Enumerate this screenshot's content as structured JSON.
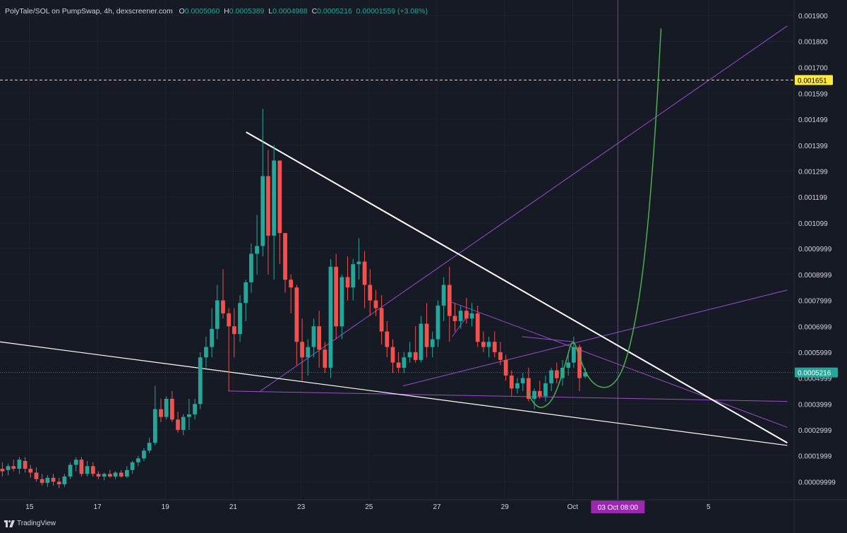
{
  "header": {
    "symbol": "PolyTale/SOL on PumpSwap, 4h, dexscreener.com",
    "o_label": "O",
    "o_value": "0.0005060",
    "h_label": "H",
    "h_value": "0.0005389",
    "l_label": "L",
    "l_value": "0.0004988",
    "c_label": "C",
    "c_value": "0.0005216",
    "change": "0.00001559 (+3.08%)"
  },
  "footer": {
    "brand": "TradingView"
  },
  "colors": {
    "background": "#161a25",
    "up": "#26a69a",
    "down": "#ef5350",
    "trendline": "#ffffff",
    "projection": "#7c3aed",
    "curve": "#4caf50",
    "level": "#ffeb3b",
    "price_tag": "#26a69a",
    "date_tag": "#9c27b0"
  },
  "chart_data": {
    "type": "candlestick",
    "pair": "PolyTale/SOL",
    "interval": "4h",
    "y_ticks": [
      "0.001900",
      "0.001800",
      "0.001700",
      "0.001599",
      "0.001499",
      "0.001399",
      "0.001299",
      "0.001199",
      "0.001099",
      "0.0009999",
      "0.0008999",
      "0.0007999",
      "0.0006999",
      "0.0005999",
      "0.0004999",
      "0.0003999",
      "0.0002999",
      "0.0001999",
      "0.00009999"
    ],
    "y_tick_values": [
      0.0019,
      0.0018,
      0.0017,
      0.001599,
      0.001499,
      0.001399,
      0.001299,
      0.001199,
      0.001099,
      0.0009999,
      0.0008999,
      0.0007999,
      0.0006999,
      0.0005999,
      0.0004999,
      0.0003999,
      0.0002999,
      0.0001999,
      9.999e-05
    ],
    "ylim": [
      3e-05,
      0.00196
    ],
    "x_ticks": [
      "15",
      "17",
      "19",
      "21",
      "23",
      "25",
      "27",
      "29",
      "Oct",
      "5"
    ],
    "x_tick_values": [
      15,
      17,
      19,
      21,
      23,
      25,
      27,
      29,
      31,
      35
    ],
    "xlim": [
      14.13,
      37.52
    ],
    "current_price": 0.0005216,
    "current_price_label": "0.0005216",
    "level_price": 0.001651,
    "level_price_label": "0.001651",
    "marker_x": 32.33,
    "marker_label": "03 Oct   08:00",
    "candles": [
      {
        "x": 14.2,
        "o": 0.00015,
        "h": 0.000175,
        "l": 0.00012,
        "c": 0.00014
      },
      {
        "x": 14.37,
        "o": 0.000145,
        "h": 0.00017,
        "l": 0.000125,
        "c": 0.00016
      },
      {
        "x": 14.53,
        "o": 0.00016,
        "h": 0.000185,
        "l": 0.00014,
        "c": 0.00015
      },
      {
        "x": 14.7,
        "o": 0.00015,
        "h": 0.000195,
        "l": 0.00013,
        "c": 0.000185
      },
      {
        "x": 14.87,
        "o": 0.00018,
        "h": 0.000195,
        "l": 0.000135,
        "c": 0.00015
      },
      {
        "x": 15.03,
        "o": 0.00015,
        "h": 0.000165,
        "l": 0.000115,
        "c": 0.000135
      },
      {
        "x": 15.2,
        "o": 0.000135,
        "h": 0.000155,
        "l": 0.0001,
        "c": 0.00011
      },
      {
        "x": 15.37,
        "o": 0.00011,
        "h": 0.00013,
        "l": 8.5e-05,
        "c": 9.5e-05
      },
      {
        "x": 15.53,
        "o": 9.5e-05,
        "h": 0.000125,
        "l": 8e-05,
        "c": 0.000115
      },
      {
        "x": 15.7,
        "o": 0.000115,
        "h": 0.00013,
        "l": 8.5e-05,
        "c": 0.0001
      },
      {
        "x": 15.87,
        "o": 0.0001,
        "h": 0.000115,
        "l": 7.5e-05,
        "c": 9e-05
      },
      {
        "x": 16.03,
        "o": 9e-05,
        "h": 0.00013,
        "l": 8e-05,
        "c": 0.00012
      },
      {
        "x": 16.2,
        "o": 0.00012,
        "h": 0.000175,
        "l": 0.00011,
        "c": 0.000165
      },
      {
        "x": 16.37,
        "o": 0.000165,
        "h": 0.000195,
        "l": 0.00014,
        "c": 0.000185
      },
      {
        "x": 16.53,
        "o": 0.000185,
        "h": 0.000195,
        "l": 0.00012,
        "c": 0.00013
      },
      {
        "x": 16.7,
        "o": 0.00013,
        "h": 0.00018,
        "l": 0.00012,
        "c": 0.00016
      },
      {
        "x": 16.87,
        "o": 0.00016,
        "h": 0.000175,
        "l": 0.00012,
        "c": 0.00013
      },
      {
        "x": 17.03,
        "o": 0.00013,
        "h": 0.00014,
        "l": 0.00011,
        "c": 0.00012
      },
      {
        "x": 17.2,
        "o": 0.00012,
        "h": 0.000135,
        "l": 0.000105,
        "c": 0.00013
      },
      {
        "x": 17.37,
        "o": 0.00013,
        "h": 0.000145,
        "l": 0.000115,
        "c": 0.00012
      },
      {
        "x": 17.53,
        "o": 0.00012,
        "h": 0.00014,
        "l": 0.00011,
        "c": 0.000135
      },
      {
        "x": 17.7,
        "o": 0.000135,
        "h": 0.000145,
        "l": 0.000115,
        "c": 0.00012
      },
      {
        "x": 17.87,
        "o": 0.00012,
        "h": 0.00016,
        "l": 0.000115,
        "c": 0.000145
      },
      {
        "x": 18.03,
        "o": 0.000145,
        "h": 0.00018,
        "l": 0.00013,
        "c": 0.000175
      },
      {
        "x": 18.2,
        "o": 0.000175,
        "h": 0.0002,
        "l": 0.00016,
        "c": 0.00019
      },
      {
        "x": 18.37,
        "o": 0.00019,
        "h": 0.00023,
        "l": 0.00018,
        "c": 0.00022
      },
      {
        "x": 18.53,
        "o": 0.00022,
        "h": 0.00027,
        "l": 0.00021,
        "c": 0.00025
      },
      {
        "x": 18.7,
        "o": 0.00025,
        "h": 0.00047,
        "l": 0.00024,
        "c": 0.00038
      },
      {
        "x": 18.87,
        "o": 0.00038,
        "h": 0.00042,
        "l": 0.00033,
        "c": 0.00035
      },
      {
        "x": 19.03,
        "o": 0.00035,
        "h": 0.00043,
        "l": 0.00034,
        "c": 0.00042
      },
      {
        "x": 19.2,
        "o": 0.00042,
        "h": 0.00045,
        "l": 0.00033,
        "c": 0.00034
      },
      {
        "x": 19.37,
        "o": 0.00034,
        "h": 0.00037,
        "l": 0.00029,
        "c": 0.0003
      },
      {
        "x": 19.53,
        "o": 0.0003,
        "h": 0.00036,
        "l": 0.00028,
        "c": 0.00035
      },
      {
        "x": 19.7,
        "o": 0.00035,
        "h": 0.00042,
        "l": 0.0003,
        "c": 0.00036
      },
      {
        "x": 19.87,
        "o": 0.00036,
        "h": 0.00042,
        "l": 0.00034,
        "c": 0.0004
      },
      {
        "x": 20.03,
        "o": 0.0004,
        "h": 0.0006,
        "l": 0.00038,
        "c": 0.00058
      },
      {
        "x": 20.2,
        "o": 0.00058,
        "h": 0.00066,
        "l": 0.00054,
        "c": 0.00062
      },
      {
        "x": 20.37,
        "o": 0.00062,
        "h": 0.00077,
        "l": 0.00058,
        "c": 0.00069
      },
      {
        "x": 20.53,
        "o": 0.00069,
        "h": 0.00086,
        "l": 0.00065,
        "c": 0.0008
      },
      {
        "x": 20.7,
        "o": 0.0008,
        "h": 0.00092,
        "l": 0.00073,
        "c": 0.00075
      },
      {
        "x": 20.87,
        "o": 0.00075,
        "h": 0.00077,
        "l": 0.00045,
        "c": 0.0007
      },
      {
        "x": 21.03,
        "o": 0.0007,
        "h": 0.00077,
        "l": 0.00058,
        "c": 0.00067
      },
      {
        "x": 21.2,
        "o": 0.00067,
        "h": 0.00082,
        "l": 0.00064,
        "c": 0.00079
      },
      {
        "x": 21.37,
        "o": 0.00079,
        "h": 0.00088,
        "l": 0.00072,
        "c": 0.00087
      },
      {
        "x": 21.53,
        "o": 0.00087,
        "h": 0.00102,
        "l": 0.00083,
        "c": 0.00098
      },
      {
        "x": 21.7,
        "o": 0.00098,
        "h": 0.00113,
        "l": 0.0009,
        "c": 0.00101
      },
      {
        "x": 21.87,
        "o": 0.00101,
        "h": 0.00154,
        "l": 0.00097,
        "c": 0.00128
      },
      {
        "x": 22.03,
        "o": 0.00128,
        "h": 0.00138,
        "l": 0.0009,
        "c": 0.00105
      },
      {
        "x": 22.2,
        "o": 0.00105,
        "h": 0.0014,
        "l": 0.00088,
        "c": 0.00134
      },
      {
        "x": 22.37,
        "o": 0.00134,
        "h": 0.00134,
        "l": 0.00094,
        "c": 0.00106
      },
      {
        "x": 22.53,
        "o": 0.00106,
        "h": 0.00106,
        "l": 0.00083,
        "c": 0.00088
      },
      {
        "x": 22.7,
        "o": 0.00088,
        "h": 0.0009,
        "l": 0.00075,
        "c": 0.00085
      },
      {
        "x": 22.87,
        "o": 0.00085,
        "h": 0.00086,
        "l": 0.00055,
        "c": 0.00064
      },
      {
        "x": 23.03,
        "o": 0.00064,
        "h": 0.00073,
        "l": 0.00049,
        "c": 0.00058
      },
      {
        "x": 23.2,
        "o": 0.00058,
        "h": 0.00065,
        "l": 0.00051,
        "c": 0.00062
      },
      {
        "x": 23.37,
        "o": 0.00062,
        "h": 0.00073,
        "l": 0.00058,
        "c": 0.0007
      },
      {
        "x": 23.53,
        "o": 0.0007,
        "h": 0.00076,
        "l": 0.00054,
        "c": 0.00061
      },
      {
        "x": 23.7,
        "o": 0.00061,
        "h": 0.00064,
        "l": 0.00052,
        "c": 0.00054
      },
      {
        "x": 23.87,
        "o": 0.00054,
        "h": 0.00096,
        "l": 0.0005,
        "c": 0.00093
      },
      {
        "x": 24.03,
        "o": 0.00093,
        "h": 0.00098,
        "l": 0.00065,
        "c": 0.0007
      },
      {
        "x": 24.2,
        "o": 0.0007,
        "h": 0.0009,
        "l": 0.00065,
        "c": 0.00089
      },
      {
        "x": 24.37,
        "o": 0.00089,
        "h": 0.00097,
        "l": 0.0008,
        "c": 0.00085
      },
      {
        "x": 24.53,
        "o": 0.00085,
        "h": 0.00096,
        "l": 0.0008,
        "c": 0.00094
      },
      {
        "x": 24.7,
        "o": 0.00094,
        "h": 0.00104,
        "l": 0.00088,
        "c": 0.00095
      },
      {
        "x": 24.87,
        "o": 0.00095,
        "h": 0.00099,
        "l": 0.00077,
        "c": 0.00086
      },
      {
        "x": 25.03,
        "o": 0.00086,
        "h": 0.00092,
        "l": 0.00074,
        "c": 0.0008
      },
      {
        "x": 25.2,
        "o": 0.0008,
        "h": 0.00084,
        "l": 0.00074,
        "c": 0.00077
      },
      {
        "x": 25.37,
        "o": 0.00077,
        "h": 0.00082,
        "l": 0.00063,
        "c": 0.00068
      },
      {
        "x": 25.53,
        "o": 0.00068,
        "h": 0.00072,
        "l": 0.00058,
        "c": 0.00062
      },
      {
        "x": 25.7,
        "o": 0.00062,
        "h": 0.00065,
        "l": 0.00052,
        "c": 0.00056
      },
      {
        "x": 25.87,
        "o": 0.00056,
        "h": 0.0006,
        "l": 0.00052,
        "c": 0.00054
      },
      {
        "x": 26.03,
        "o": 0.00054,
        "h": 0.0006,
        "l": 0.00052,
        "c": 0.00058
      },
      {
        "x": 26.2,
        "o": 0.00058,
        "h": 0.00064,
        "l": 0.00056,
        "c": 0.0006
      },
      {
        "x": 26.37,
        "o": 0.0006,
        "h": 0.0007,
        "l": 0.00056,
        "c": 0.00057
      },
      {
        "x": 26.53,
        "o": 0.00057,
        "h": 0.00074,
        "l": 0.00056,
        "c": 0.00071
      },
      {
        "x": 26.7,
        "o": 0.00071,
        "h": 0.00079,
        "l": 0.00058,
        "c": 0.00062
      },
      {
        "x": 26.87,
        "o": 0.00062,
        "h": 0.00068,
        "l": 0.00058,
        "c": 0.00065
      },
      {
        "x": 27.03,
        "o": 0.00065,
        "h": 0.0008,
        "l": 0.00062,
        "c": 0.00078
      },
      {
        "x": 27.2,
        "o": 0.00078,
        "h": 0.00089,
        "l": 0.00072,
        "c": 0.00086
      },
      {
        "x": 27.37,
        "o": 0.00086,
        "h": 0.00093,
        "l": 0.00064,
        "c": 0.00074
      },
      {
        "x": 27.53,
        "o": 0.00074,
        "h": 0.00079,
        "l": 0.00068,
        "c": 0.00072
      },
      {
        "x": 27.7,
        "o": 0.00072,
        "h": 0.00078,
        "l": 0.00069,
        "c": 0.00076
      },
      {
        "x": 27.87,
        "o": 0.00076,
        "h": 0.00081,
        "l": 0.00071,
        "c": 0.00073
      },
      {
        "x": 28.03,
        "o": 0.00073,
        "h": 0.00079,
        "l": 0.0007,
        "c": 0.00075
      },
      {
        "x": 28.2,
        "o": 0.00075,
        "h": 0.00078,
        "l": 0.00062,
        "c": 0.00064
      },
      {
        "x": 28.37,
        "o": 0.00064,
        "h": 0.00068,
        "l": 0.0006,
        "c": 0.00062
      },
      {
        "x": 28.53,
        "o": 0.00062,
        "h": 0.00066,
        "l": 0.00058,
        "c": 0.00064
      },
      {
        "x": 28.7,
        "o": 0.00064,
        "h": 0.00068,
        "l": 0.00058,
        "c": 0.0006
      },
      {
        "x": 28.87,
        "o": 0.0006,
        "h": 0.00064,
        "l": 0.00055,
        "c": 0.00057
      },
      {
        "x": 29.03,
        "o": 0.00057,
        "h": 0.00059,
        "l": 0.00049,
        "c": 0.00051
      },
      {
        "x": 29.2,
        "o": 0.00051,
        "h": 0.00053,
        "l": 0.00043,
        "c": 0.00046
      },
      {
        "x": 29.37,
        "o": 0.00046,
        "h": 0.0005,
        "l": 0.00044,
        "c": 0.00048
      },
      {
        "x": 29.53,
        "o": 0.00048,
        "h": 0.00052,
        "l": 0.00045,
        "c": 0.0005
      },
      {
        "x": 29.7,
        "o": 0.0005,
        "h": 0.00054,
        "l": 0.00041,
        "c": 0.00042
      },
      {
        "x": 29.87,
        "o": 0.00042,
        "h": 0.00046,
        "l": 0.00038,
        "c": 0.00045
      },
      {
        "x": 30.03,
        "o": 0.00045,
        "h": 0.00049,
        "l": 0.00042,
        "c": 0.00043
      },
      {
        "x": 30.2,
        "o": 0.00043,
        "h": 0.00051,
        "l": 0.00041,
        "c": 0.00048
      },
      {
        "x": 30.37,
        "o": 0.00048,
        "h": 0.00054,
        "l": 0.00045,
        "c": 0.00053
      },
      {
        "x": 30.53,
        "o": 0.00053,
        "h": 0.00056,
        "l": 0.00048,
        "c": 0.0005
      },
      {
        "x": 30.7,
        "o": 0.0005,
        "h": 0.00057,
        "l": 0.00047,
        "c": 0.00054
      },
      {
        "x": 30.87,
        "o": 0.00054,
        "h": 0.0006,
        "l": 0.00051,
        "c": 0.00056
      },
      {
        "x": 31.03,
        "o": 0.00056,
        "h": 0.00066,
        "l": 0.00054,
        "c": 0.00062
      },
      {
        "x": 31.2,
        "o": 0.00062,
        "h": 0.00063,
        "l": 0.00045,
        "c": 0.0005
      },
      {
        "x": 31.37,
        "o": 0.000506,
        "h": 0.000539,
        "l": 0.000499,
        "c": 0.000522
      }
    ],
    "trendlines": [
      {
        "name": "upper-resistance",
        "color": "white",
        "points": [
          [
            21.38,
            0.00145
          ],
          [
            37.32,
            0.00025
          ]
        ]
      },
      {
        "name": "lower-support",
        "color": "white",
        "points": [
          [
            14.13,
            0.00064
          ],
          [
            37.32,
            0.00024
          ]
        ]
      }
    ],
    "projections": [
      {
        "name": "steep-projection",
        "points": [
          [
            21.8,
            0.00045
          ],
          [
            37.32,
            0.00186
          ]
        ]
      },
      {
        "name": "upper-channel",
        "points": [
          [
            26.0,
            0.00047
          ],
          [
            37.32,
            0.00084
          ]
        ]
      },
      {
        "name": "flat-support",
        "points": [
          [
            20.85,
            0.00045
          ],
          [
            37.32,
            0.00041
          ]
        ]
      },
      {
        "name": "wedge-top",
        "points": [
          [
            27.3,
            0.0008
          ],
          [
            37.32,
            0.00031
          ]
        ]
      },
      {
        "name": "inner-wedge-top",
        "points": [
          [
            29.5,
            0.00066
          ],
          [
            31.05,
            0.00064
          ]
        ]
      },
      {
        "name": "small-rise",
        "points": [
          [
            27.45,
            0.00066
          ],
          [
            27.95,
            0.00075
          ]
        ]
      }
    ],
    "curve_points": [
      [
        29.65,
        0.00045
      ],
      [
        29.85,
        0.0004
      ],
      [
        30.1,
        0.00038
      ],
      [
        30.45,
        0.00042
      ],
      [
        30.8,
        0.00056
      ],
      [
        31.0,
        0.00066
      ],
      [
        31.2,
        0.00058
      ],
      [
        31.45,
        0.0005
      ],
      [
        31.8,
        0.00046
      ],
      [
        32.2,
        0.00047
      ],
      [
        32.55,
        0.00055
      ],
      [
        32.9,
        0.00075
      ],
      [
        33.15,
        0.001
      ],
      [
        33.35,
        0.0013
      ],
      [
        33.5,
        0.0016
      ],
      [
        33.6,
        0.00185
      ]
    ]
  }
}
